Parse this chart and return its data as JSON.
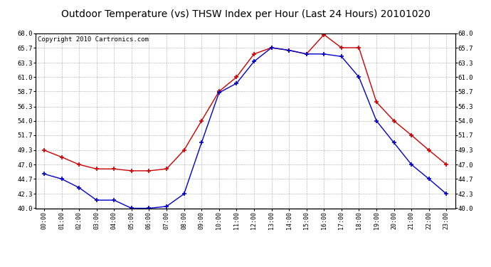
{
  "title": "Outdoor Temperature (vs) THSW Index per Hour (Last 24 Hours) 20101020",
  "copyright": "Copyright 2010 Cartronics.com",
  "hours": [
    "00:00",
    "01:00",
    "02:00",
    "03:00",
    "04:00",
    "05:00",
    "06:00",
    "07:00",
    "08:00",
    "09:00",
    "10:00",
    "11:00",
    "12:00",
    "13:00",
    "14:00",
    "15:00",
    "16:00",
    "17:00",
    "18:00",
    "19:00",
    "20:00",
    "21:00",
    "22:00",
    "23:00"
  ],
  "temp_red": [
    49.3,
    48.2,
    47.0,
    46.3,
    46.3,
    46.0,
    46.0,
    46.3,
    49.3,
    54.0,
    58.7,
    61.0,
    64.7,
    65.7,
    65.3,
    64.7,
    67.8,
    65.7,
    65.7,
    57.0,
    54.0,
    51.7,
    49.3,
    47.0
  ],
  "thsw_blue": [
    45.5,
    44.7,
    43.3,
    41.3,
    41.3,
    40.0,
    40.0,
    40.3,
    42.3,
    50.5,
    58.5,
    60.0,
    63.5,
    65.7,
    65.3,
    64.7,
    64.7,
    64.3,
    61.0,
    54.0,
    50.5,
    47.0,
    44.7,
    42.3
  ],
  "ylim": [
    40.0,
    68.0
  ],
  "yticks": [
    40.0,
    42.3,
    44.7,
    47.0,
    49.3,
    51.7,
    54.0,
    56.3,
    58.7,
    61.0,
    63.3,
    65.7,
    68.0
  ],
  "red_color": "#cc0000",
  "blue_color": "#0000cc",
  "bg_color": "#ffffff",
  "grid_color": "#aaaaaa",
  "title_fontsize": 10,
  "copyright_fontsize": 6.5
}
